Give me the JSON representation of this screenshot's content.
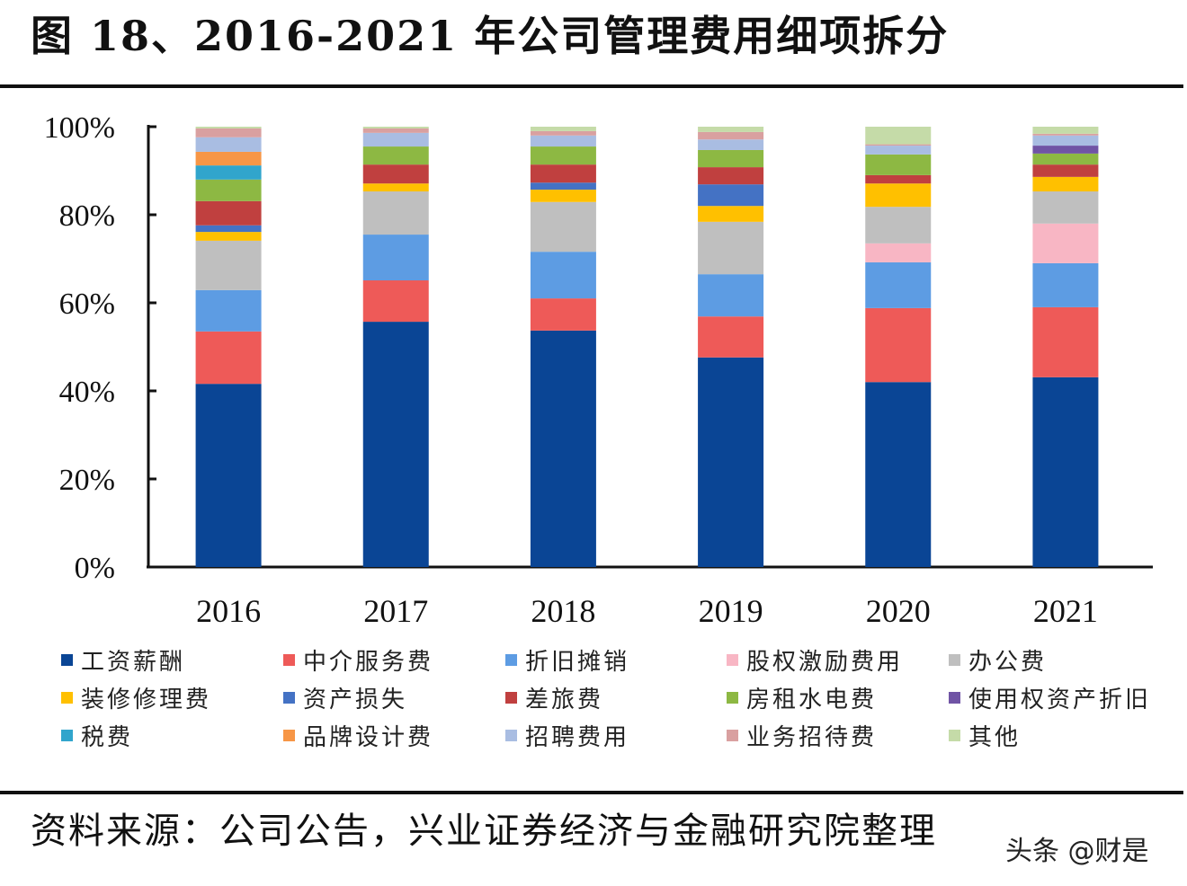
{
  "title": "图 18、2016-2021 年公司管理费用细项拆分",
  "source": "资料来源：公司公告，兴业证券经济与金融研究院整理",
  "watermark": "头条 @财是",
  "chart_data": {
    "type": "bar",
    "stacked": true,
    "title": "",
    "xlabel": "",
    "ylabel": "",
    "ylim": [
      0,
      100
    ],
    "y_ticks": [
      "0%",
      "20%",
      "40%",
      "60%",
      "80%",
      "100%"
    ],
    "grid": false,
    "legend_position": "bottom",
    "categories": [
      "2016",
      "2017",
      "2018",
      "2019",
      "2020",
      "2021"
    ],
    "series": [
      {
        "name": "工资薪酬",
        "color": "#0a4595",
        "values": [
          41.6,
          55.7,
          53.7,
          47.6,
          42.0,
          43.1
        ]
      },
      {
        "name": "中介服务费",
        "color": "#ee5a58",
        "values": [
          11.9,
          9.4,
          7.3,
          9.3,
          16.8,
          15.9
        ]
      },
      {
        "name": "折旧摊销",
        "color": "#5d9ce3",
        "values": [
          9.4,
          10.4,
          10.6,
          9.6,
          10.4,
          10.0
        ]
      },
      {
        "name": "股权激励费用",
        "color": "#f8b6c4",
        "values": [
          0,
          0,
          0,
          0,
          4.3,
          9.0
        ]
      },
      {
        "name": "办公费",
        "color": "#bfbfbf",
        "values": [
          11.2,
          9.8,
          11.3,
          11.9,
          8.3,
          7.3
        ]
      },
      {
        "name": "装修修理费",
        "color": "#ffc000",
        "values": [
          2.0,
          1.8,
          2.8,
          3.6,
          5.3,
          3.3
        ]
      },
      {
        "name": "资产损失",
        "color": "#4472c4",
        "values": [
          1.5,
          0,
          1.6,
          4.9,
          0,
          0
        ]
      },
      {
        "name": "差旅费",
        "color": "#c0403f",
        "values": [
          5.5,
          4.3,
          4.1,
          3.9,
          1.9,
          2.8
        ]
      },
      {
        "name": "房租水电费",
        "color": "#8db843",
        "values": [
          4.9,
          4.1,
          4.1,
          3.9,
          4.7,
          2.5
        ]
      },
      {
        "name": "使用权资产折旧",
        "color": "#7054a5",
        "values": [
          0,
          0,
          0,
          0,
          0,
          1.8
        ]
      },
      {
        "name": "税费",
        "color": "#31a5cc",
        "values": [
          3.2,
          0,
          0,
          0,
          0,
          0
        ]
      },
      {
        "name": "品牌设计费",
        "color": "#f79646",
        "values": [
          3.1,
          0,
          0,
          0,
          0,
          0
        ]
      },
      {
        "name": "招聘费用",
        "color": "#a9bde2",
        "values": [
          3.3,
          3.1,
          2.5,
          2.4,
          2.0,
          2.3
        ]
      },
      {
        "name": "业务招待费",
        "color": "#d9a0a0",
        "values": [
          2.0,
          1.0,
          1.0,
          1.7,
          0.3,
          0.4
        ]
      },
      {
        "name": "其他",
        "color": "#c5dba8",
        "values": [
          0.4,
          0.4,
          1.0,
          1.2,
          4.0,
          1.6
        ]
      }
    ]
  }
}
